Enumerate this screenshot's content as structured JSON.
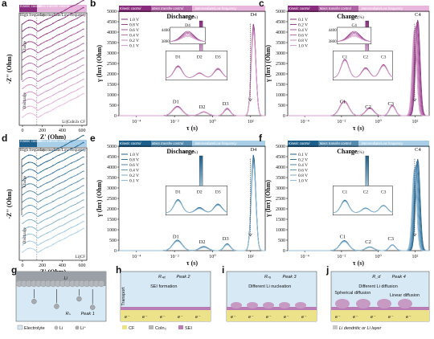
{
  "panels": {
    "a": {
      "label": "a",
      "xlabel": "Z' (Ohm)",
      "ylabel": "-Z'' (Ohm)",
      "xticks": [
        "0",
        "200",
        "400",
        "600"
      ],
      "banner": [
        "Kinetic control",
        "Mass transfer control"
      ],
      "regions": [
        "High frequency",
        "Intermediate/Low frequency"
      ],
      "charge_label": "Charge",
      "discharge_label": "Discharge",
      "sample": "Li||CoIn3x CF"
    },
    "b": {
      "label": "b",
      "title": "Discharge",
      "xlabel": "τ (s)",
      "ylabel": "γ (lnτ) (Ohm)",
      "yticks": [
        "0",
        "500",
        "1000",
        "1500",
        "2000",
        "2500",
        "3000",
        "3500",
        "4000",
        "4500",
        "5000"
      ],
      "xticks": [
        "10⁻⁴",
        "10⁻²",
        "10⁰",
        "10²"
      ],
      "banner": [
        "Kinetic control",
        "Mass transfer control",
        "Intermediate/Low frequency"
      ],
      "banner_hf": "High frequency",
      "legend": [
        "1.0 V",
        "0.8 V",
        "0.6 V",
        "0.4 V",
        "0.2 V",
        "0.1 V"
      ],
      "soc_label": "SOC(%)",
      "soc_max": "100",
      "soc_min": "0",
      "peaks": [
        "D1",
        "D2",
        "D3",
        "D4"
      ],
      "inset_ticks": [
        "4400",
        "3800"
      ]
    },
    "c": {
      "label": "c",
      "title": "Charge",
      "xlabel": "τ (s)",
      "ylabel": "γ (lnτ) (Ohm)",
      "yticks": [
        "0",
        "500",
        "1000",
        "1500",
        "2000",
        "2500",
        "3000",
        "3500",
        "4000",
        "4500",
        "5000"
      ],
      "xticks": [
        "10⁻⁴",
        "10⁻²",
        "10⁰",
        "10²"
      ],
      "banner": [
        "Kinetic control",
        "Mass transfer control",
        "Intermediate/Low frequency"
      ],
      "banner_hf": "High frequency",
      "legend": [
        "0.1 V",
        "0.2 V",
        "0.4 V",
        "0.6 V",
        "0.8 V",
        "1.0 V"
      ],
      "soc_label": "SOC(%)",
      "soc_max": "100",
      "soc_min": "0",
      "peaks": [
        "C1",
        "C2",
        "C3",
        "C4"
      ],
      "inset_ticks": [
        "4400",
        "3800"
      ]
    },
    "d": {
      "label": "d",
      "xlabel": "Z' (Ohm)",
      "ylabel": "-Z'' (Ohm)",
      "xticks": [
        "0",
        "200",
        "400",
        "600"
      ],
      "banner": [
        "Kinetic control",
        "Mass transfer control"
      ],
      "regions": [
        "High frequency",
        "Intermediate/Low frequency"
      ],
      "charge_label": "Charge",
      "discharge_label": "Discharge",
      "sample": "Li||CF"
    },
    "e": {
      "label": "e",
      "title": "Discharge",
      "xlabel": "τ (s)",
      "ylabel": "γ (lnτ) (Ohm)",
      "yticks": [
        "0",
        "500",
        "1000",
        "1500",
        "2000",
        "2500",
        "3000",
        "3500",
        "4000",
        "4500",
        "5000"
      ],
      "xticks": [
        "10⁻⁴",
        "10⁻²",
        "10⁰",
        "10²"
      ],
      "banner": [
        "Kinetic control",
        "Mass transfer control",
        "Intermediate/Low frequency"
      ],
      "banner_hf": "High frequency",
      "legend": [
        "1.0 V",
        "0.8 V",
        "0.6 V",
        "0.4 V",
        "0.2 V",
        "0.1 V"
      ],
      "soc_label": "SOC(%)",
      "soc_max": "100",
      "soc_min": "0",
      "peaks": [
        "D1",
        "D2",
        "D3",
        "D4"
      ]
    },
    "f": {
      "label": "f",
      "title": "Charge",
      "xlabel": "τ (s)",
      "ylabel": "γ (lnτ) (Ohm)",
      "yticks": [
        "0",
        "500",
        "1000",
        "1500",
        "2000",
        "2500",
        "3000",
        "3500",
        "4000",
        "4500",
        "5000"
      ],
      "xticks": [
        "10⁻⁴",
        "10⁻²",
        "10⁰",
        "10²"
      ],
      "banner": [
        "Kinetic control",
        "Mass transfer control",
        "Intermediate/Low frequency"
      ],
      "banner_hf": "High frequency",
      "legend": [
        "0.1 V",
        "0.2 V",
        "0.4 V",
        "0.6 V",
        "0.8 V",
        "1.0 V"
      ],
      "soc_label": "SOC(%)",
      "soc_max": "100",
      "soc_min": "0",
      "peaks": [
        "C1",
        "C2",
        "C3",
        "C4"
      ]
    },
    "g": {
      "label": "g",
      "li": "Li",
      "rpeak": "Rₛ",
      "peak1": "Peak 1",
      "legend": [
        "Electrolyte",
        "Li",
        "Li⁺"
      ]
    },
    "h": {
      "label": "h",
      "rpeak": "Rₛₑᵢ",
      "peak": "Peak 2",
      "note": "SEI formation",
      "transport": "Transport",
      "legend": [
        "CF",
        "CoIn₃",
        "SEI"
      ]
    },
    "i": {
      "label": "i",
      "rpeak": "Rₙᵤ",
      "peak": "Peak 3",
      "note": "Different Li nucleation"
    },
    "j": {
      "label": "j",
      "rpeak": "R_d",
      "peak": "Peak 4",
      "note": "Different Li diffusion",
      "note2": "Spherical diffusion",
      "note3": "Linear diffusion",
      "legend": [
        "Li dendritic or Li layer"
      ]
    },
    "e_symbol": "e⁻"
  },
  "colors": {
    "pink_dark": "#8a2c7e",
    "pink_mid": "#c467b3",
    "pink_light": "#e8b6dd",
    "blue_dark": "#1c5f8c",
    "blue_mid": "#4a90c0",
    "blue_light": "#a9cfe8",
    "cf_yellow": "#ece28a",
    "sei_purple": "#b97cb5"
  },
  "chart_data": [
    {
      "panel": "b",
      "type": "line",
      "series": [
        {
          "name": "1.0 V",
          "peak_values": [
            450,
            170,
            320,
            4400
          ]
        },
        {
          "name": "0.8 V",
          "peak_values": [
            440,
            175,
            330,
            4350
          ]
        },
        {
          "name": "0.6 V",
          "peak_values": [
            430,
            180,
            340,
            4300
          ]
        },
        {
          "name": "0.4 V",
          "peak_values": [
            420,
            185,
            350,
            4200
          ]
        },
        {
          "name": "0.2 V",
          "peak_values": [
            410,
            190,
            360,
            4100
          ]
        },
        {
          "name": "0.1 V",
          "peak_values": [
            400,
            195,
            370,
            4000
          ]
        }
      ]
    },
    {
      "panel": "c",
      "type": "line",
      "series": [
        {
          "name": "0.1 V",
          "peak_values": [
            700,
            380,
            500,
            4600
          ]
        },
        {
          "name": "0.2 V",
          "peak_values": [
            690,
            370,
            490,
            4500
          ]
        },
        {
          "name": "0.4 V",
          "peak_values": [
            680,
            360,
            480,
            4400
          ]
        },
        {
          "name": "0.6 V",
          "peak_values": [
            670,
            350,
            470,
            4300
          ]
        },
        {
          "name": "0.8 V",
          "peak_values": [
            660,
            340,
            460,
            4200
          ]
        },
        {
          "name": "1.0 V",
          "peak_values": [
            650,
            330,
            450,
            4100
          ]
        }
      ]
    },
    {
      "panel": "e",
      "type": "line",
      "series": [
        {
          "name": "1.0 V",
          "peak_values": [
            500,
            200,
            330,
            4600
          ]
        },
        {
          "name": "0.8 V",
          "peak_values": [
            490,
            190,
            320,
            4500
          ]
        },
        {
          "name": "0.6 V",
          "peak_values": [
            480,
            180,
            310,
            4400
          ]
        },
        {
          "name": "0.4 V",
          "peak_values": [
            470,
            170,
            300,
            4300
          ]
        },
        {
          "name": "0.2 V",
          "peak_values": [
            460,
            160,
            290,
            4200
          ]
        },
        {
          "name": "0.1 V",
          "peak_values": [
            450,
            150,
            280,
            4100
          ]
        }
      ]
    },
    {
      "panel": "f",
      "type": "line",
      "series": [
        {
          "name": "0.1 V",
          "peak_values": [
            480,
            180,
            280,
            4400
          ]
        },
        {
          "name": "0.2 V",
          "peak_values": [
            470,
            175,
            275,
            4300
          ]
        },
        {
          "name": "0.4 V",
          "peak_values": [
            460,
            170,
            270,
            4200
          ]
        },
        {
          "name": "0.6 V",
          "peak_values": [
            450,
            165,
            265,
            4100
          ]
        },
        {
          "name": "0.8 V",
          "peak_values": [
            440,
            160,
            260,
            4000
          ]
        },
        {
          "name": "1.0 V",
          "peak_values": [
            430,
            155,
            255,
            3900
          ]
        }
      ]
    }
  ]
}
